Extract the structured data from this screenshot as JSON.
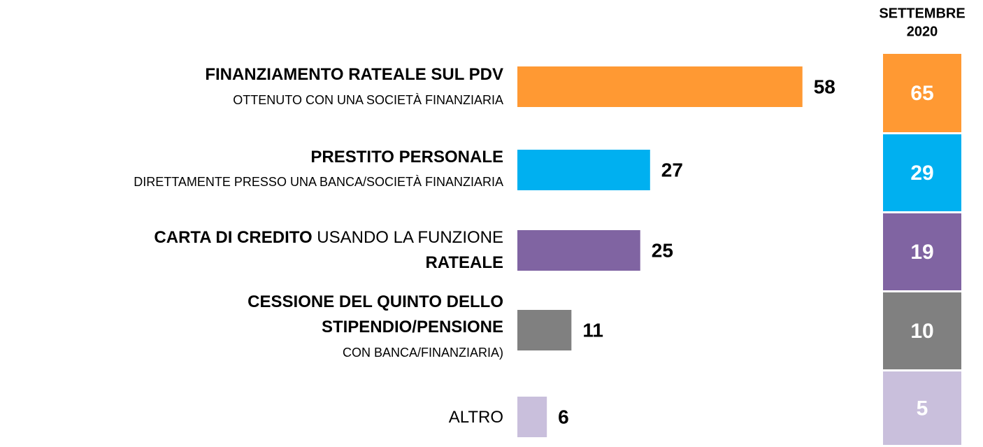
{
  "chart_data": {
    "type": "bar",
    "categories": [
      [
        [
          {
            "text": "FINANZIAMENTO RATEALE SUL PDV",
            "bold": true
          }
        ],
        [
          {
            "text": "OTTENUTO CON UNA SOCIETÀ FINANZIARIA",
            "bold": false
          }
        ]
      ],
      [
        [
          {
            "text": "PRESTITO PERSONALE",
            "bold": true
          }
        ],
        [
          {
            "text": "DIRETTAMENTE PRESSO UNA BANCA/SOCIETÀ FINANZIARIA",
            "bold": false
          }
        ]
      ],
      [
        [
          {
            "text": "CARTA DI CREDITO",
            "bold": true
          },
          {
            "text": " USANDO LA FUNZIONE",
            "bold": false
          }
        ],
        [
          {
            "text": "RATEALE",
            "bold": true
          }
        ]
      ],
      [
        [
          {
            "text": "CESSIONE DEL QUINTO DELLO",
            "bold": true
          }
        ],
        [
          {
            "text": "STIPENDIO/PENSIONE",
            "bold": true
          }
        ],
        [
          {
            "text": "CON BANCA/FINANZIARIA)",
            "bold": false
          }
        ]
      ],
      [
        [
          {
            "text": "ALTRO",
            "bold": false
          }
        ]
      ]
    ],
    "values": [
      58,
      27,
      25,
      11,
      6
    ],
    "colors": [
      "#ff9933",
      "#00b0f0",
      "#8064a2",
      "#808080",
      "#c9bfdc"
    ],
    "comparison": {
      "title": [
        "SETTEMBRE",
        "2020"
      ],
      "values": [
        65,
        29,
        19,
        10,
        5
      ]
    }
  }
}
